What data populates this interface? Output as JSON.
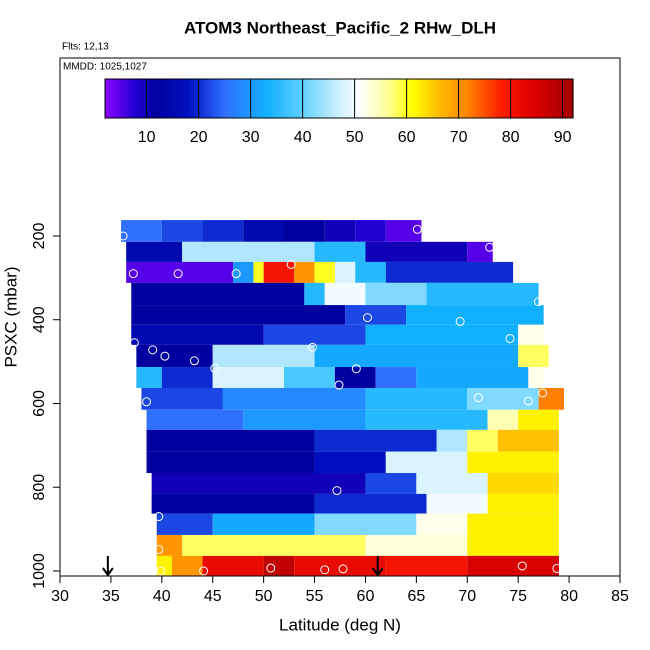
{
  "chart_data": {
    "type": "heatmap",
    "title": "ATOM3 Northeast_Pacific_2 RHw_DLH",
    "subtitles": [
      "Flts: 12,13",
      "MMDD: 1025,1027"
    ],
    "x_label": "Latitude (deg N)",
    "y_label": "PSXC (mbar)",
    "xlim": [
      30,
      85
    ],
    "xticks": [
      30,
      35,
      40,
      45,
      50,
      55,
      60,
      65,
      70,
      75,
      80,
      85
    ],
    "ylim": [
      1012,
      -225
    ],
    "yticks": [
      200,
      400,
      600,
      800,
      1000
    ],
    "colorbar": {
      "lim": [
        2,
        92
      ],
      "ticks": [
        10,
        20,
        30,
        40,
        50,
        60,
        70,
        80,
        90
      ]
    },
    "colormap": [
      [
        2,
        "#8a00ff"
      ],
      [
        8,
        "#2000d0"
      ],
      [
        12,
        "#0000a0"
      ],
      [
        18,
        "#0010c0"
      ],
      [
        25,
        "#3070ff"
      ],
      [
        33,
        "#10b0ff"
      ],
      [
        40,
        "#60d0ff"
      ],
      [
        46,
        "#c0ecff"
      ],
      [
        51,
        "#ffffff"
      ],
      [
        56,
        "#ffffa0"
      ],
      [
        61,
        "#ffff00"
      ],
      [
        66,
        "#ffc000"
      ],
      [
        72,
        "#ff8000"
      ],
      [
        78,
        "#ff2000"
      ],
      [
        84,
        "#e00000"
      ],
      [
        92,
        "#a00000"
      ]
    ],
    "strips": [
      {
        "p": [
          162,
          214
        ],
        "lat": [
          36,
          40,
          44,
          48,
          52,
          56,
          59,
          62,
          65.5
        ],
        "values": [
          25,
          22,
          20,
          15,
          12,
          10,
          8,
          5
        ]
      },
      {
        "p": [
          214,
          262
        ],
        "lat": [
          36.5,
          42,
          55,
          60,
          70,
          72.5
        ],
        "values": [
          15,
          45,
          35,
          10,
          5
        ]
      },
      {
        "p": [
          262,
          312
        ],
        "lat": [
          36.5,
          47,
          49,
          50,
          53,
          55,
          57,
          59,
          62,
          74.5
        ],
        "values": [
          5,
          30,
          60,
          80,
          70,
          60,
          48,
          35,
          20
        ]
      },
      {
        "p": [
          312,
          365
        ],
        "lat": [
          37,
          54,
          56,
          60,
          66,
          77
        ],
        "values": [
          12,
          35,
          50,
          42,
          35
        ]
      },
      {
        "p": [
          365,
          412
        ],
        "lat": [
          37,
          58,
          64,
          77.5
        ],
        "values": [
          12,
          22,
          33
        ]
      },
      {
        "p": [
          412,
          460
        ],
        "lat": [
          37,
          50,
          60,
          75,
          77.5
        ],
        "values": [
          15,
          22,
          33,
          52
        ]
      },
      {
        "p": [
          460,
          513
        ],
        "lat": [
          37.5,
          45,
          55,
          75,
          78
        ],
        "values": [
          12,
          45,
          32,
          58
        ]
      },
      {
        "p": [
          513,
          563
        ],
        "lat": [
          37.5,
          40,
          45,
          52,
          57,
          61,
          65,
          76,
          77.5
        ],
        "values": [
          35,
          20,
          48,
          38,
          12,
          25,
          32,
          52
        ]
      },
      {
        "p": [
          563,
          615
        ],
        "lat": [
          38,
          46,
          60,
          70,
          77,
          79.5
        ],
        "values": [
          22,
          28,
          35,
          42,
          72
        ]
      },
      {
        "p": [
          615,
          663
        ],
        "lat": [
          38.5,
          48,
          60,
          72,
          75,
          79
        ],
        "values": [
          25,
          30,
          35,
          55,
          62
        ]
      },
      {
        "p": [
          663,
          715
        ],
        "lat": [
          38.5,
          55,
          67,
          70,
          73,
          79
        ],
        "values": [
          12,
          20,
          45,
          58,
          66
        ]
      },
      {
        "p": [
          715,
          766
        ],
        "lat": [
          38.5,
          55,
          62,
          70,
          79
        ],
        "values": [
          12,
          18,
          48,
          62
        ]
      },
      {
        "p": [
          766,
          816
        ],
        "lat": [
          39,
          60,
          65,
          72,
          79
        ],
        "values": [
          10,
          22,
          48,
          64
        ]
      },
      {
        "p": [
          816,
          863
        ],
        "lat": [
          39,
          55,
          66,
          72,
          79
        ],
        "values": [
          12,
          20,
          50,
          62
        ]
      },
      {
        "p": [
          863,
          914
        ],
        "lat": [
          39.5,
          45,
          55,
          65,
          70,
          79
        ],
        "values": [
          22,
          32,
          42,
          52,
          62
        ]
      },
      {
        "p": [
          914,
          964
        ],
        "lat": [
          39.5,
          42,
          60,
          70,
          79
        ],
        "values": [
          70,
          58,
          53,
          62
        ]
      },
      {
        "p": [
          964,
          1012
        ],
        "lat": [
          39.5,
          41,
          44,
          50,
          53,
          62,
          70,
          79
        ],
        "values": [
          62,
          70,
          82,
          88,
          82,
          80,
          85
        ]
      }
    ],
    "points": [
      [
        36.2,
        200
      ],
      [
        65.1,
        184
      ],
      [
        72.2,
        227
      ],
      [
        37.2,
        290
      ],
      [
        41.6,
        290
      ],
      [
        47.3,
        290
      ],
      [
        52.7,
        268
      ],
      [
        77,
        357
      ],
      [
        60.2,
        395
      ],
      [
        69.3,
        404
      ],
      [
        74.2,
        445
      ],
      [
        37.3,
        455
      ],
      [
        39.1,
        472
      ],
      [
        40.3,
        487
      ],
      [
        43.2,
        498
      ],
      [
        45.2,
        516
      ],
      [
        54.8,
        466
      ],
      [
        59.1,
        517
      ],
      [
        57.4,
        556
      ],
      [
        38.5,
        596
      ],
      [
        71.1,
        586
      ],
      [
        76,
        594
      ],
      [
        77.4,
        575
      ],
      [
        39.7,
        870
      ],
      [
        57.2,
        808
      ],
      [
        39.7,
        949
      ],
      [
        39.9,
        1000
      ],
      [
        44.1,
        1000
      ],
      [
        50.7,
        993
      ],
      [
        56,
        997
      ],
      [
        57.8,
        995
      ],
      [
        75.4,
        988
      ],
      [
        78.8,
        994
      ]
    ],
    "markers": [
      34.7,
      61.2
    ]
  }
}
